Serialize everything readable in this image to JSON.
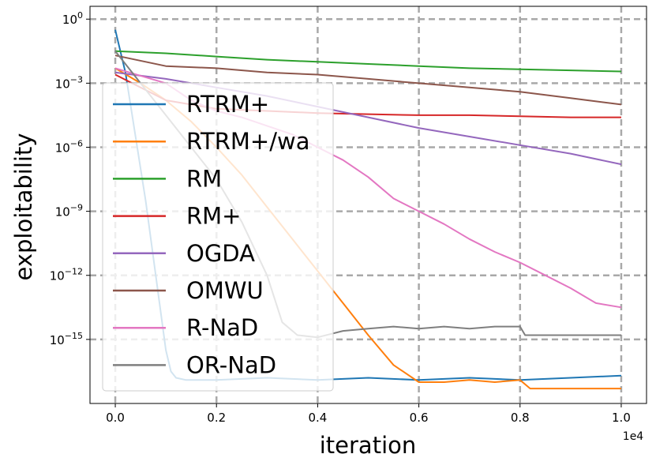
{
  "chart_data": {
    "type": "line",
    "title": "",
    "xlabel": "iteration",
    "ylabel": "exploitability",
    "x_offset_label": "1e4",
    "y_scale": "log",
    "xlim": [
      -0.05,
      1.05
    ],
    "ylim_log10": [
      -18,
      0.6
    ],
    "grid": true,
    "legend_position": "left",
    "x_ticks": [
      {
        "v": 0.0,
        "label": "0.0"
      },
      {
        "v": 0.2,
        "label": "0.2"
      },
      {
        "v": 0.4,
        "label": "0.4"
      },
      {
        "v": 0.6,
        "label": "0.6"
      },
      {
        "v": 0.8,
        "label": "0.8"
      },
      {
        "v": 1.0,
        "label": "1.0"
      }
    ],
    "y_ticks": [
      {
        "e": 0,
        "base": "10",
        "exp": "0"
      },
      {
        "e": -3,
        "base": "10",
        "exp": "−3"
      },
      {
        "e": -6,
        "base": "10",
        "exp": "−6"
      },
      {
        "e": -9,
        "base": "10",
        "exp": "−9"
      },
      {
        "e": -12,
        "base": "10",
        "exp": "−12"
      },
      {
        "e": -15,
        "base": "10",
        "exp": "−15"
      }
    ],
    "series": [
      {
        "name": "RTRM+",
        "color": "#1f77b4",
        "x": [
          0.0,
          0.02,
          0.04,
          0.06,
          0.08,
          0.1,
          0.11,
          0.12,
          0.14,
          0.2,
          0.3,
          0.4,
          0.5,
          0.6,
          0.7,
          0.8,
          0.9,
          1.0
        ],
        "y_log10": [
          -0.5,
          -2.5,
          -5.5,
          -8.5,
          -12,
          -15.5,
          -16.5,
          -16.8,
          -16.9,
          -16.9,
          -16.8,
          -16.9,
          -16.8,
          -16.9,
          -16.8,
          -16.9,
          -16.8,
          -16.7
        ]
      },
      {
        "name": "RTRM+/wa",
        "color": "#ff7f0e",
        "x": [
          0.0,
          0.05,
          0.1,
          0.15,
          0.2,
          0.25,
          0.3,
          0.35,
          0.4,
          0.45,
          0.5,
          0.55,
          0.6,
          0.65,
          0.7,
          0.75,
          0.8,
          0.82,
          1.0
        ],
        "y_log10": [
          -2.3,
          -3.0,
          -3.8,
          -4.8,
          -6.0,
          -7.3,
          -8.8,
          -10.3,
          -11.8,
          -13.3,
          -14.8,
          -16.2,
          -17.0,
          -17.0,
          -16.9,
          -17.0,
          -16.9,
          -17.3,
          -17.3
        ]
      },
      {
        "name": "RM",
        "color": "#2ca02c",
        "x": [
          0.0,
          0.1,
          0.2,
          0.3,
          0.4,
          0.5,
          0.6,
          0.7,
          0.8,
          0.9,
          1.0
        ],
        "y_log10": [
          -1.5,
          -1.6,
          -1.75,
          -1.9,
          -2.0,
          -2.1,
          -2.2,
          -2.3,
          -2.35,
          -2.4,
          -2.45
        ]
      },
      {
        "name": "RM+",
        "color": "#d62728",
        "x": [
          0.0,
          0.1,
          0.2,
          0.3,
          0.4,
          0.5,
          0.6,
          0.7,
          0.8,
          0.9,
          1.0
        ],
        "y_log10": [
          -2.6,
          -3.8,
          -4.2,
          -4.3,
          -4.4,
          -4.45,
          -4.5,
          -4.5,
          -4.55,
          -4.6,
          -4.6
        ]
      },
      {
        "name": "OGDA",
        "color": "#9467bd",
        "x": [
          0.0,
          0.1,
          0.2,
          0.3,
          0.4,
          0.5,
          0.6,
          0.7,
          0.8,
          0.9,
          1.0
        ],
        "y_log10": [
          -2.5,
          -2.8,
          -3.2,
          -3.6,
          -4.1,
          -4.6,
          -5.1,
          -5.5,
          -5.9,
          -6.3,
          -6.8
        ]
      },
      {
        "name": "OMWU",
        "color": "#8c564b",
        "x": [
          0.0,
          0.1,
          0.2,
          0.3,
          0.4,
          0.5,
          0.6,
          0.7,
          0.8,
          0.9,
          1.0
        ],
        "y_log10": [
          -1.7,
          -2.2,
          -2.3,
          -2.5,
          -2.6,
          -2.8,
          -3.0,
          -3.2,
          -3.4,
          -3.7,
          -4.0
        ]
      },
      {
        "name": "R-NaD",
        "color": "#e377c2",
        "x": [
          0.0,
          0.1,
          0.15,
          0.2,
          0.25,
          0.3,
          0.35,
          0.4,
          0.45,
          0.5,
          0.55,
          0.6,
          0.65,
          0.7,
          0.75,
          0.8,
          0.85,
          0.9,
          0.95,
          1.0
        ],
        "y_log10": [
          -2.3,
          -3.0,
          -3.8,
          -4.3,
          -4.6,
          -5.0,
          -5.4,
          -6.0,
          -6.6,
          -7.4,
          -8.4,
          -9.0,
          -9.6,
          -10.3,
          -10.9,
          -11.4,
          -12.0,
          -12.6,
          -13.3,
          -13.5
        ]
      },
      {
        "name": "OR-NaD",
        "color": "#7f7f7f",
        "x": [
          0.0,
          0.05,
          0.1,
          0.15,
          0.2,
          0.25,
          0.3,
          0.33,
          0.36,
          0.4,
          0.45,
          0.5,
          0.55,
          0.6,
          0.65,
          0.7,
          0.75,
          0.8,
          0.81,
          1.0
        ],
        "y_log10": [
          -1.5,
          -3.0,
          -4.5,
          -6.0,
          -7.5,
          -9.5,
          -12.0,
          -14.2,
          -14.8,
          -14.9,
          -14.6,
          -14.5,
          -14.4,
          -14.5,
          -14.4,
          -14.5,
          -14.4,
          -14.4,
          -14.8,
          -14.8
        ]
      }
    ]
  }
}
